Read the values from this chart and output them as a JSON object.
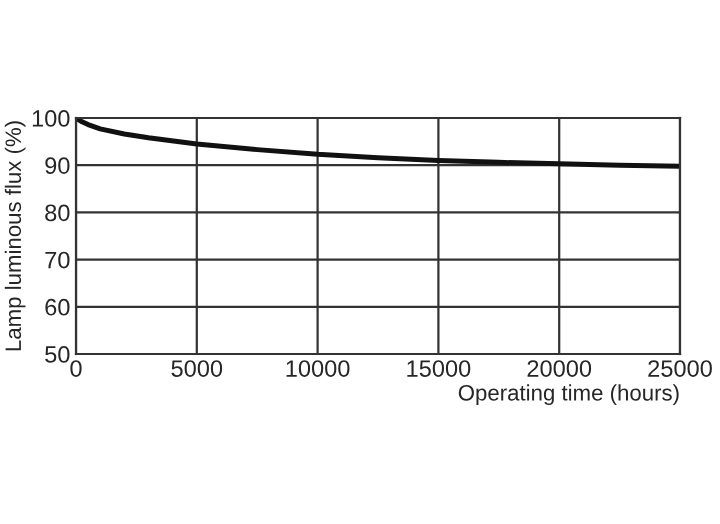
{
  "chart_data": {
    "type": "line",
    "xlabel": "Operating time (hours)",
    "ylabel": "Lamp luminous flux (%)",
    "x": [
      0,
      250,
      500,
      1000,
      2000,
      3000,
      5000,
      7500,
      10000,
      12500,
      15000,
      17500,
      20000,
      22500,
      25000
    ],
    "series": [
      {
        "color": "#111111",
        "values": [
          100,
          99.2,
          98.6,
          97.7,
          96.6,
          95.8,
          94.5,
          93.3,
          92.3,
          91.6,
          91,
          90.6,
          90.3,
          90,
          89.8
        ]
      }
    ],
    "xlim": [
      0,
      25000
    ],
    "ylim": [
      50,
      100
    ],
    "xticks": [
      0,
      5000,
      10000,
      15000,
      20000,
      25000
    ],
    "yticks": [
      50,
      60,
      70,
      80,
      90,
      100
    ],
    "grid": true,
    "marker": "none",
    "line_style": "solid"
  }
}
